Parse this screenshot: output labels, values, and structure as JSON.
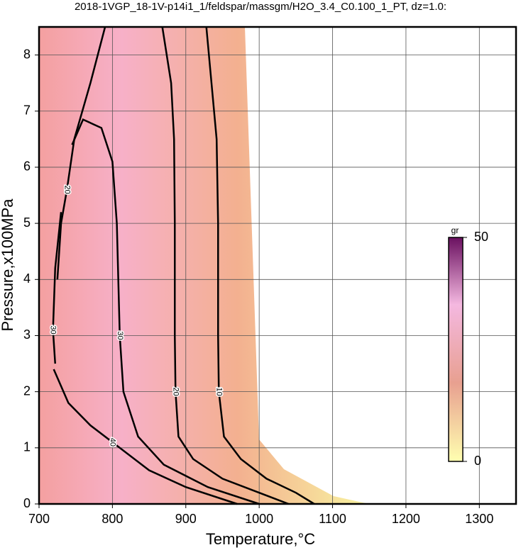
{
  "chart_data": {
    "type": "contour",
    "title": "2018-1VGP_18-1V-p14i1_1/feldspar/massgm/H2O_3.4_C0.100_1_PT, dz=1.0:",
    "xlabel": "Temperature,°C",
    "ylabel": "Pressure,x100MPa",
    "xlim": [
      700,
      1350
    ],
    "ylim": [
      0,
      8.5
    ],
    "xticks": [
      700,
      800,
      900,
      1000,
      1100,
      1200,
      1300
    ],
    "yticks": [
      0,
      1,
      2,
      3,
      4,
      5,
      6,
      7,
      8
    ],
    "grid": true,
    "contours": [
      {
        "level": 10,
        "x": [
          928,
          935,
          942,
          944,
          944,
          945,
          952,
          975,
          1010,
          1050,
          1075
        ],
        "y": [
          8.5,
          7.5,
          6.5,
          5,
          3,
          2,
          1.2,
          0.8,
          0.45,
          0.2,
          0
        ]
      },
      {
        "level": 20,
        "x": [
          868,
          880,
          884,
          885,
          885,
          886,
          890,
          910,
          950,
          1000,
          1040
        ],
        "y": [
          8.5,
          7.5,
          6.5,
          5,
          3,
          2,
          1.2,
          0.8,
          0.45,
          0.2,
          0
        ]
      },
      {
        "level": 30,
        "x": [
          745,
          760,
          785,
          800,
          806,
          808,
          810,
          815,
          835,
          870,
          930,
          1000
        ],
        "y": [
          6.4,
          6.85,
          6.7,
          6.1,
          5,
          4,
          3,
          2,
          1.2,
          0.7,
          0.3,
          0
        ]
      },
      {
        "level": 40,
        "x": [
          720,
          740,
          770,
          800,
          850,
          900,
          970
        ],
        "y": [
          2.4,
          1.8,
          1.4,
          1.1,
          0.6,
          0.3,
          0
        ]
      },
      {
        "level": 20,
        "x": [
          790,
          770,
          748,
          738,
          730,
          725
        ],
        "y": [
          8.5,
          7.5,
          6.5,
          5.6,
          5,
          4
        ]
      },
      {
        "level": 30,
        "x": [
          730,
          722,
          719,
          722
        ],
        "y": [
          5.2,
          4.2,
          3.1,
          2.5
        ]
      }
    ],
    "colorbar": {
      "label": "gr",
      "lim": [
        0,
        50
      ],
      "ticks": [
        0,
        50
      ]
    }
  }
}
